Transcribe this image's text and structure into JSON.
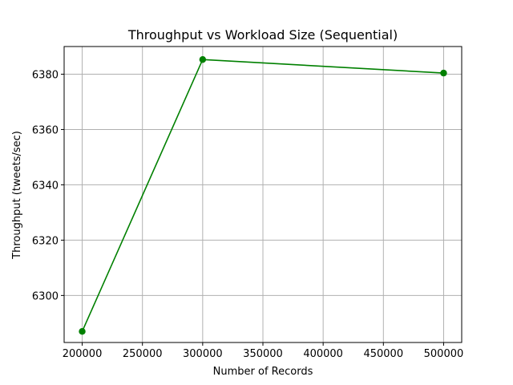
{
  "chart_data": {
    "type": "line",
    "title": "Throughput vs Workload Size (Sequential)",
    "xlabel": "Number of Records",
    "ylabel": "Throughput (tweets/sec)",
    "x": [
      200000,
      300000,
      500000
    ],
    "series": [
      {
        "values": [
          6287.0,
          6385.3,
          6380.4
        ],
        "color": "#008000",
        "marker": "circle"
      }
    ],
    "xlim": [
      185000,
      515000
    ],
    "ylim": [
      6283,
      6390
    ],
    "xticks": [
      200000,
      250000,
      300000,
      350000,
      400000,
      450000,
      500000
    ],
    "xtick_labels": [
      "200000",
      "250000",
      "300000",
      "350000",
      "400000",
      "450000",
      "500000"
    ],
    "yticks": [
      6300,
      6320,
      6340,
      6360,
      6380
    ],
    "ytick_labels": [
      "6300",
      "6320",
      "6340",
      "6360",
      "6380"
    ],
    "grid": true,
    "colors": {
      "line": "#008000",
      "grid": "#b0b0b0",
      "axes": "#000000"
    }
  }
}
